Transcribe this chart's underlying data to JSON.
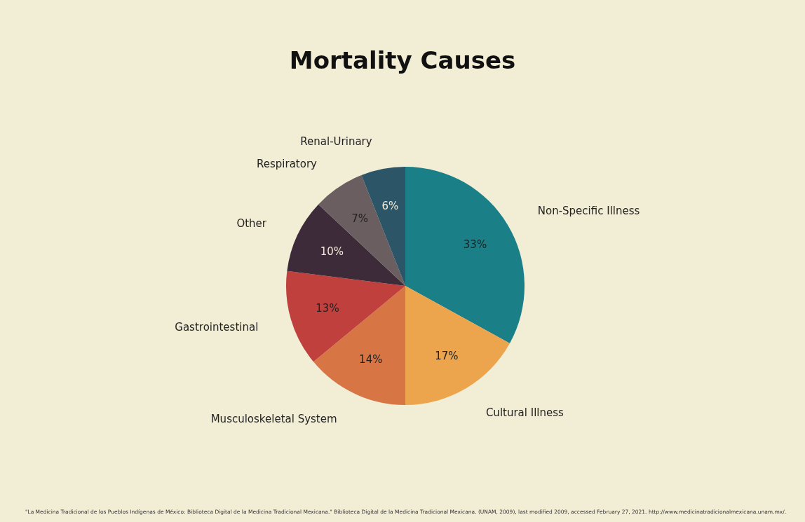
{
  "chart_data": {
    "type": "pie",
    "title": "Mortality Causes",
    "categories": [
      "Non-Specific Illness",
      "Cultural Illness",
      "Musculoskeletal System",
      "Gastrointestinal",
      "Other",
      "Respiratory",
      "Renal-Urinary"
    ],
    "values": [
      33,
      17,
      14,
      13,
      10,
      7,
      6
    ],
    "colors": [
      "#1a7f87",
      "#eca54c",
      "#d87545",
      "#c0403e",
      "#3d2b3a",
      "#6b5e60",
      "#2c5667"
    ],
    "value_labels": [
      "33%",
      "17%",
      "14%",
      "13%",
      "10%",
      "7%",
      "6%"
    ],
    "annotations": [
      "\"La Medicina Tradicional de los Pueblos Indígenas de México: Biblioteca Digital de la Medicina Tradicional Mexicana.\" Biblioteca Digital de la Medicina Tradicional Mexicana. (UNAM, 2009), last modified 2009, accessed February 27, 2021. http://www.medicinatradicionalmexicana.unam.mx/."
    ]
  }
}
